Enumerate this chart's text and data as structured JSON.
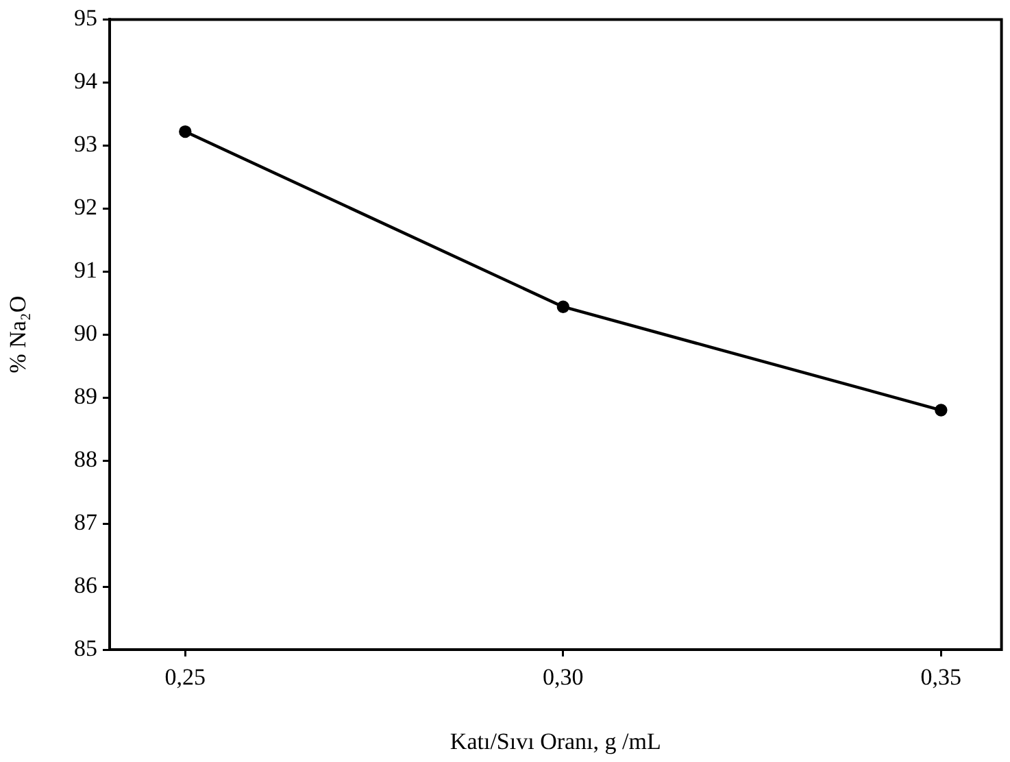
{
  "chart_data": {
    "type": "line",
    "xlabel": "Katı/Sıvı Oranı, g /mL",
    "ylabel": "% Na₂O",
    "x": [
      0.25,
      0.3,
      0.35
    ],
    "series": [
      {
        "color": "#000000",
        "values": [
          93.22,
          90.44,
          88.8
        ]
      }
    ],
    "xlim": [
      0.24,
      0.358
    ],
    "xticks": [
      {
        "value": 0.25,
        "label": "0,25"
      },
      {
        "value": 0.3,
        "label": "0,30"
      },
      {
        "value": 0.35,
        "label": "0,35"
      }
    ],
    "ylim": [
      85,
      95
    ],
    "yticks": [
      85,
      86,
      87,
      88,
      89,
      90,
      91,
      92,
      93,
      94,
      95
    ],
    "marker": "circle",
    "line_style": "solid",
    "legend": false
  }
}
